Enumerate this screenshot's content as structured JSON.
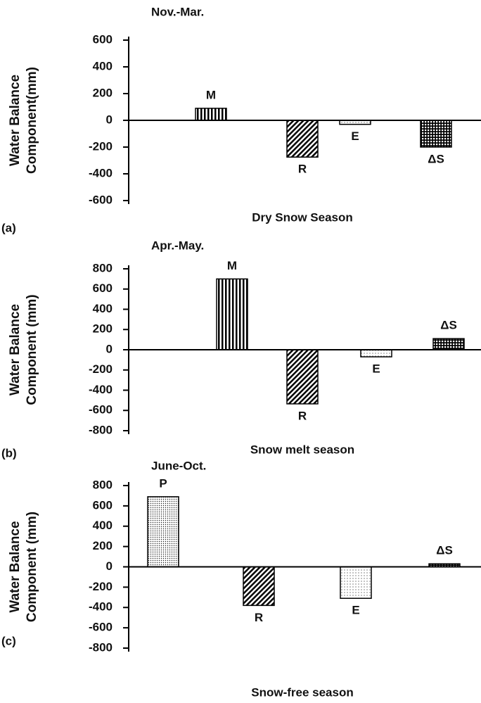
{
  "chart_data": [
    {
      "type": "bar",
      "panel": "(a)",
      "title": "Nov.-Mar.",
      "xlabel": "Dry Snow Season",
      "ylabel": [
        "Water Balance",
        "Component(mm)"
      ],
      "categories": [
        "M",
        "R",
        "E",
        "ΔS"
      ],
      "values": [
        90,
        -275,
        -30,
        -200
      ],
      "patterns": [
        "vstripe",
        "hatch",
        "dots",
        "grid"
      ],
      "ylim": [
        -600,
        600
      ],
      "yticks": [
        -600,
        -400,
        -200,
        0,
        200,
        400,
        600
      ]
    },
    {
      "type": "bar",
      "panel": "(b)",
      "title": "Apr.-May.",
      "xlabel": "Snow melt season",
      "ylabel": [
        "Water Balance",
        "Component (mm)"
      ],
      "categories": [
        "M",
        "R",
        "E",
        "ΔS"
      ],
      "values": [
        700,
        -535,
        -70,
        110
      ],
      "patterns": [
        "vstripe",
        "hatch",
        "dots",
        "grid"
      ],
      "ylim": [
        -800,
        800
      ],
      "yticks": [
        -800,
        -600,
        -400,
        -200,
        0,
        200,
        400,
        600,
        800
      ]
    },
    {
      "type": "bar",
      "panel": "(c)",
      "title": "June-Oct.",
      "xlabel": "Snow-free season",
      "ylabel": [
        "Water Balance",
        "Component (mm)"
      ],
      "categories": [
        "P",
        "R",
        "E",
        "ΔS"
      ],
      "values": [
        690,
        -380,
        -310,
        30
      ],
      "patterns": [
        "densedots",
        "hatch",
        "dots",
        "grid"
      ],
      "ylim": [
        -800,
        800
      ],
      "yticks": [
        -800,
        -600,
        -400,
        -200,
        0,
        200,
        400,
        600,
        800
      ]
    }
  ]
}
